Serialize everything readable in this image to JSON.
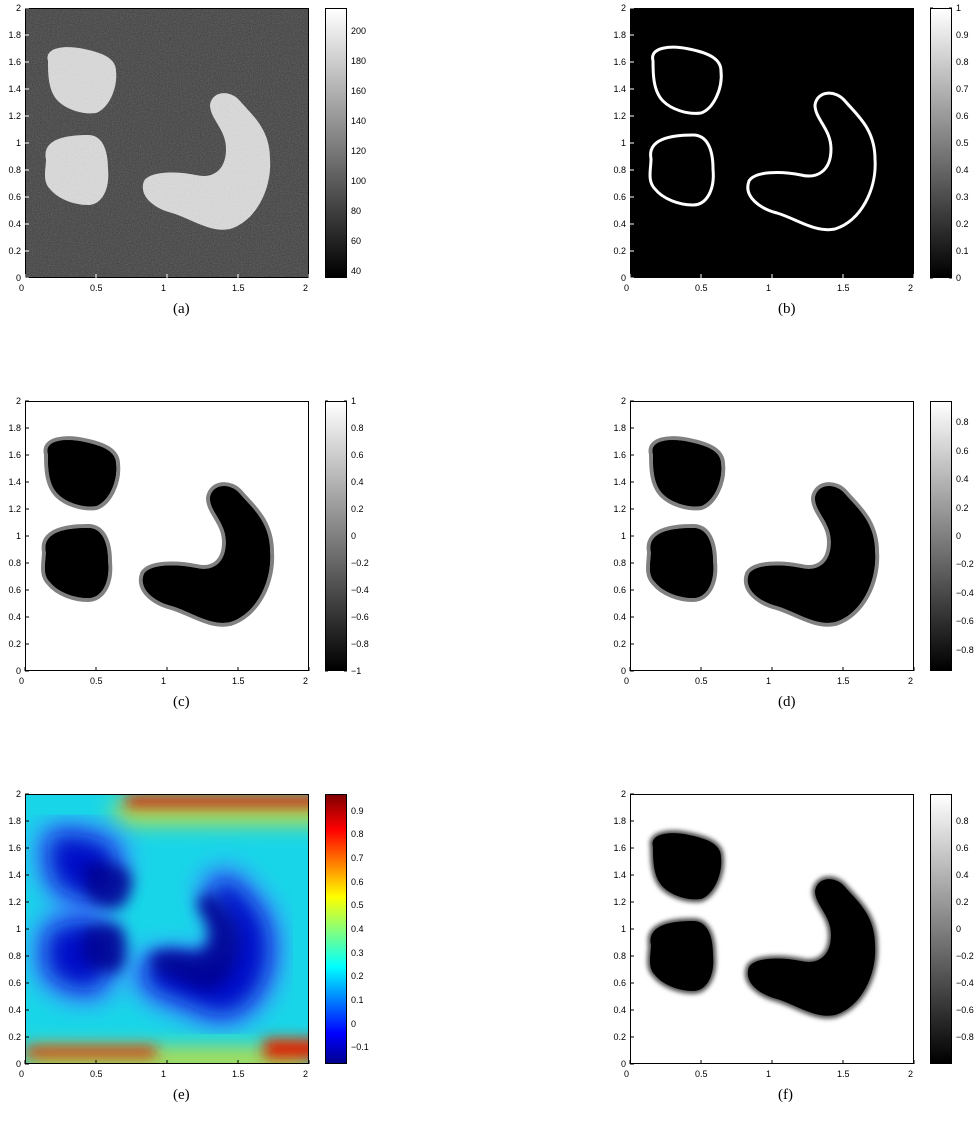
{
  "figures": [
    {
      "id": "a",
      "caption": "(a)",
      "style": "gray",
      "colorbar_ticks": [
        "40",
        "60",
        "80",
        "100",
        "120",
        "140",
        "160",
        "180",
        "200"
      ]
    },
    {
      "id": "b",
      "caption": "(b)",
      "style": "contour",
      "colorbar_ticks": [
        "0",
        "0.1",
        "0.2",
        "0.3",
        "0.4",
        "0.5",
        "0.6",
        "0.7",
        "0.8",
        "0.9",
        "1"
      ]
    },
    {
      "id": "c",
      "caption": "(c)",
      "style": "phase",
      "colorbar_ticks": [
        "−1",
        "−0.8",
        "−0.6",
        "−0.4",
        "−0.2",
        "0",
        "0.2",
        "0.4",
        "0.6",
        "0.8",
        "1"
      ]
    },
    {
      "id": "d",
      "caption": "(d)",
      "style": "phase",
      "colorbar_ticks": [
        "−0.8",
        "−0.6",
        "−0.4",
        "−0.2",
        "0",
        "0.2",
        "0.4",
        "0.6",
        "0.8"
      ]
    },
    {
      "id": "e",
      "caption": "(e)",
      "style": "distance",
      "colorbar_ticks": [
        "−0.1",
        "0",
        "0.1",
        "0.2",
        "0.3",
        "0.4",
        "0.5",
        "0.6",
        "0.7",
        "0.8",
        "0.9"
      ]
    },
    {
      "id": "f",
      "caption": "(f)",
      "style": "blur",
      "colorbar_ticks": [
        "−0.8",
        "−0.6",
        "−0.4",
        "−0.2",
        "0",
        "0.2",
        "0.4",
        "0.6",
        "0.8"
      ]
    }
  ],
  "axes": {
    "x_ticks": [
      "0",
      "0.5",
      "1",
      "1.5",
      "2"
    ],
    "y_ticks": [
      "0",
      "0.2",
      "0.4",
      "0.6",
      "0.8",
      "1",
      "1.2",
      "1.4",
      "1.6",
      "1.8",
      "2"
    ]
  },
  "chart_data": [
    {
      "type": "heatmap",
      "title": "(a)",
      "xlim": [
        0,
        2
      ],
      "ylim": [
        0,
        2
      ],
      "colorbar": {
        "range": [
          35,
          215
        ],
        "colormap": "gray",
        "ticks": [
          40,
          60,
          80,
          100,
          120,
          140,
          160,
          180,
          200
        ]
      },
      "regions": [
        {
          "shape": "blob-upper-left",
          "center": [
            0.4,
            1.5
          ],
          "value": 210
        },
        {
          "shape": "blob-middle-left",
          "center": [
            0.4,
            0.85
          ],
          "value": 210
        },
        {
          "shape": "j-shape-right",
          "center": [
            1.35,
            0.85
          ],
          "value": 210
        },
        {
          "shape": "background",
          "value": 60
        }
      ]
    },
    {
      "type": "heatmap",
      "title": "(b)",
      "xlim": [
        0,
        2
      ],
      "ylim": [
        0,
        2
      ],
      "colorbar": {
        "range": [
          0,
          1
        ],
        "colormap": "gray",
        "ticks": [
          0,
          0.1,
          0.2,
          0.3,
          0.4,
          0.5,
          0.6,
          0.7,
          0.8,
          0.9,
          1
        ]
      },
      "regions": [
        {
          "shape": "contours-of-three-regions",
          "value": 1
        },
        {
          "shape": "background",
          "value": 0
        }
      ]
    },
    {
      "type": "heatmap",
      "title": "(c)",
      "xlim": [
        0,
        2
      ],
      "ylim": [
        0,
        2
      ],
      "colorbar": {
        "range": [
          -1,
          1
        ],
        "colormap": "gray",
        "ticks": [
          -1,
          -0.8,
          -0.6,
          -0.4,
          -0.2,
          0,
          0.2,
          0.4,
          0.6,
          0.8,
          1
        ]
      },
      "regions": [
        {
          "shape": "three-regions",
          "value": -1
        },
        {
          "shape": "background",
          "value": 1
        }
      ]
    },
    {
      "type": "heatmap",
      "title": "(d)",
      "xlim": [
        0,
        2
      ],
      "ylim": [
        0,
        2
      ],
      "colorbar": {
        "range": [
          -0.95,
          0.95
        ],
        "colormap": "gray",
        "ticks": [
          -0.8,
          -0.6,
          -0.4,
          -0.2,
          0,
          0.2,
          0.4,
          0.6,
          0.8
        ]
      },
      "regions": [
        {
          "shape": "three-regions",
          "value": -0.95
        },
        {
          "shape": "background",
          "value": 0.95
        }
      ]
    },
    {
      "type": "heatmap",
      "title": "(e)",
      "xlim": [
        0,
        2
      ],
      "ylim": [
        0,
        2
      ],
      "colorbar": {
        "range": [
          -0.17,
          0.97
        ],
        "colormap": "jet",
        "ticks": [
          -0.1,
          0,
          0.1,
          0.2,
          0.3,
          0.4,
          0.5,
          0.6,
          0.7,
          0.8,
          0.9
        ]
      },
      "regions": [
        {
          "shape": "distance-field-minima-at-regions",
          "value": -0.15
        },
        {
          "shape": "high-values-near-top-and-bottom-edges",
          "value": 0.95
        }
      ]
    },
    {
      "type": "heatmap",
      "title": "(f)",
      "xlim": [
        0,
        2
      ],
      "ylim": [
        0,
        2
      ],
      "colorbar": {
        "range": [
          -1,
          1
        ],
        "colormap": "gray",
        "ticks": [
          -0.8,
          -0.6,
          -0.4,
          -0.2,
          0,
          0.2,
          0.4,
          0.6,
          0.8
        ]
      },
      "regions": [
        {
          "shape": "three-regions-smoothed",
          "value": -1
        },
        {
          "shape": "background",
          "value": 1
        }
      ]
    }
  ]
}
